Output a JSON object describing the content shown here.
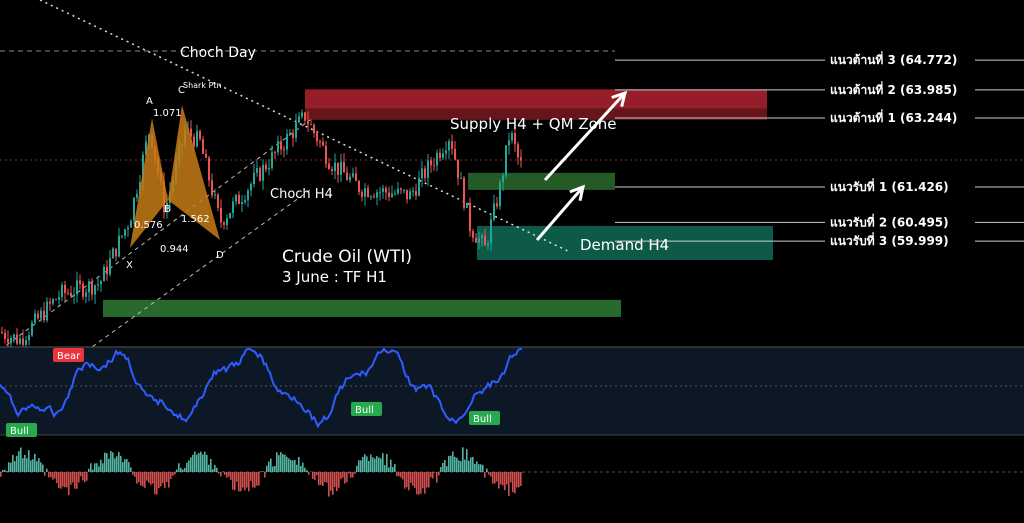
{
  "chart_data": {
    "type": "candlestick",
    "title": "Crude Oil (WTI)",
    "subtitle": "3 June : TF H1",
    "ylim": [
      57.0,
      65.5
    ],
    "levels": [
      {
        "label": "แนวต้านที่ 3 (64.772)",
        "value": 64.772,
        "kind": "resistance"
      },
      {
        "label": "แนวต้านที่ 2 (63.985)",
        "value": 63.985,
        "kind": "resistance"
      },
      {
        "label": "แนวต้านที่ 1 (63.244)",
        "value": 63.244,
        "kind": "resistance"
      },
      {
        "label": "แนวรับที่ 1 (61.426)",
        "value": 61.426,
        "kind": "support"
      },
      {
        "label": "แนวรับที่ 2  (60.495)",
        "value": 60.495,
        "kind": "support"
      },
      {
        "label": "แนวรับที่ 3  (59.999)",
        "value": 59.999,
        "kind": "support"
      }
    ],
    "zones": [
      {
        "label": "Supply H4 + QM Zone",
        "from": 63.2,
        "to": 64.0,
        "color": "#c8283a"
      },
      {
        "label": "",
        "from": 61.35,
        "to": 61.8,
        "color": "#2a6a2a"
      },
      {
        "label": "Demand H4",
        "from": 59.5,
        "to": 60.4,
        "color": "#0f6a55"
      },
      {
        "label": "",
        "from": 58.0,
        "to": 58.45,
        "color": "#2f7d32"
      }
    ],
    "annotations": [
      "Choch Day",
      "Choch H4",
      "Shark Ptn"
    ],
    "harmonic": {
      "points": [
        "X",
        "A",
        "B",
        "C",
        "D"
      ],
      "ratios": [
        "1.071",
        "0.576",
        "1.562",
        "0.944"
      ]
    },
    "oscillator": {
      "labels": [
        "Bear",
        "Bull",
        "Bull",
        "Bull"
      ]
    },
    "colors": {
      "up": "#26a69a",
      "down": "#ef5350",
      "rsi": "#2f5bff",
      "bear": "#e8353d",
      "bull": "#27a94d"
    }
  }
}
